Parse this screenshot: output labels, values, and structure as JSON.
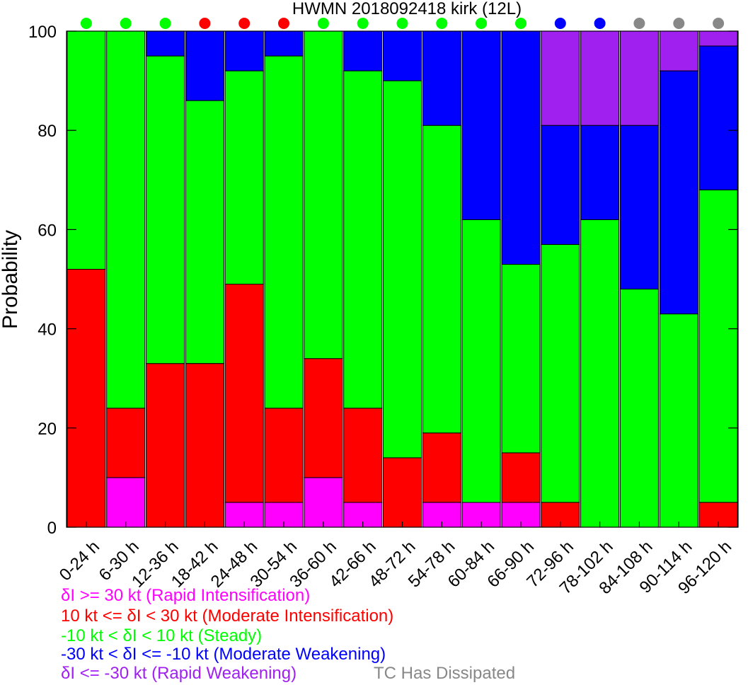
{
  "chart_data": {
    "type": "bar",
    "stacked": true,
    "title": "HWMN 2018092418 kirk (12L)",
    "xlabel": "",
    "ylabel": "Probability",
    "ylim": [
      0,
      100
    ],
    "yticks": [
      0,
      20,
      40,
      60,
      80,
      100
    ],
    "grid": false,
    "categories": [
      "0-24 h",
      "6-30 h",
      "12-36 h",
      "18-42 h",
      "24-48 h",
      "30-54 h",
      "36-60 h",
      "42-66 h",
      "48-72 h",
      "54-78 h",
      "60-84 h",
      "66-90 h",
      "72-96 h",
      "78-102 h",
      "84-108 h",
      "90-114 h",
      "96-120 h"
    ],
    "series": [
      {
        "name": "Rapid Intensification",
        "color": "#ff00ff",
        "values": [
          0,
          10,
          0,
          0,
          5,
          5,
          10,
          5,
          0,
          5,
          5,
          5,
          0,
          0,
          0,
          0,
          0
        ]
      },
      {
        "name": "Moderate Intensification",
        "color": "#ff0000",
        "values": [
          52,
          14,
          33,
          33,
          44,
          19,
          24,
          19,
          14,
          14,
          0,
          10,
          5,
          0,
          0,
          0,
          5
        ]
      },
      {
        "name": "Steady",
        "color": "#00ff00",
        "values": [
          48,
          76,
          62,
          53,
          43,
          71,
          66,
          68,
          76,
          62,
          57,
          38,
          52,
          62,
          48,
          43,
          63
        ]
      },
      {
        "name": "Moderate Weakening",
        "color": "#0000ff",
        "values": [
          0,
          0,
          5,
          14,
          8,
          5,
          0,
          8,
          10,
          19,
          38,
          47,
          24,
          19,
          33,
          49,
          29
        ]
      },
      {
        "name": "Rapid Weakening",
        "color": "#a020f0",
        "values": [
          0,
          0,
          0,
          0,
          0,
          0,
          0,
          0,
          0,
          0,
          0,
          0,
          19,
          19,
          19,
          8,
          3
        ]
      }
    ],
    "indicator_dots": [
      "#00ff00",
      "#00ff00",
      "#00ff00",
      "#ff0000",
      "#ff0000",
      "#ff0000",
      "#00ff00",
      "#00ff00",
      "#00ff00",
      "#00ff00",
      "#00ff00",
      "#00ff00",
      "#0000ff",
      "#0000ff",
      "#888888",
      "#888888",
      "#888888"
    ]
  },
  "legend": [
    {
      "text": "δI >= 30 kt (Rapid Intensification)",
      "color": "#ff00ff"
    },
    {
      "text": "10 kt <= δI < 30 kt (Moderate Intensification)",
      "color": "#ff0000"
    },
    {
      "text": "-10 kt < δI < 10 kt (Steady)",
      "color": "#00ff00"
    },
    {
      "text": "-30 kt < δI <= -10 kt (Moderate Weakening)",
      "color": "#0000ff"
    },
    {
      "text": "δI <= -30 kt (Rapid Weakening)",
      "color": "#a020f0"
    }
  ],
  "dissipated_label": {
    "text": "TC Has Dissipated",
    "color": "#888888"
  }
}
